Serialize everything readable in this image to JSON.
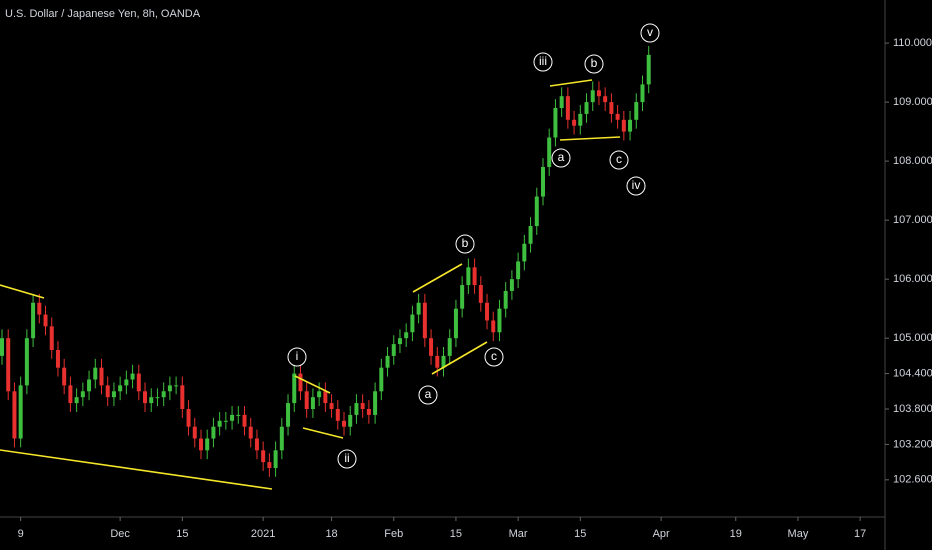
{
  "chart_data": {
    "type": "candlestick",
    "title": "U.S. Dollar / Japanese Yen, 8h, OANDA",
    "up_color": "#3fbf3f",
    "down_color": "#e8312f",
    "x": [
      "2020-11-04",
      "2020-11-05",
      "2020-11-06",
      "2020-11-09",
      "2020-11-10",
      "2020-11-11",
      "2020-11-12",
      "2020-11-13",
      "2020-11-16",
      "2020-11-17",
      "2020-11-18",
      "2020-11-19",
      "2020-11-20",
      "2020-11-23",
      "2020-11-24",
      "2020-11-25",
      "2020-11-26",
      "2020-11-27",
      "2020-11-30",
      "2020-12-01",
      "2020-12-02",
      "2020-12-03",
      "2020-12-04",
      "2020-12-07",
      "2020-12-08",
      "2020-12-09",
      "2020-12-10",
      "2020-12-11",
      "2020-12-14",
      "2020-12-15",
      "2020-12-16",
      "2020-12-17",
      "2020-12-18",
      "2020-12-21",
      "2020-12-22",
      "2020-12-23",
      "2020-12-24",
      "2020-12-25",
      "2020-12-28",
      "2020-12-29",
      "2020-12-30",
      "2020-12-31",
      "2021-01-01",
      "2021-01-04",
      "2021-01-05",
      "2021-01-06",
      "2021-01-07",
      "2021-01-08",
      "2021-01-11",
      "2021-01-12",
      "2021-01-13",
      "2021-01-14",
      "2021-01-15",
      "2021-01-18",
      "2021-01-19",
      "2021-01-20",
      "2021-01-21",
      "2021-01-22",
      "2021-01-25",
      "2021-01-26",
      "2021-01-27",
      "2021-01-28",
      "2021-01-29",
      "2021-02-01",
      "2021-02-02",
      "2021-02-03",
      "2021-02-04",
      "2021-02-05",
      "2021-02-08",
      "2021-02-09",
      "2021-02-10",
      "2021-02-11",
      "2021-02-12",
      "2021-02-15",
      "2021-02-16",
      "2021-02-17",
      "2021-02-18",
      "2021-02-19",
      "2021-02-22",
      "2021-02-23",
      "2021-02-24",
      "2021-02-25",
      "2021-02-26",
      "2021-03-01",
      "2021-03-02",
      "2021-03-03",
      "2021-03-04",
      "2021-03-05",
      "2021-03-08",
      "2021-03-09",
      "2021-03-10",
      "2021-03-11",
      "2021-03-12",
      "2021-03-15",
      "2021-03-16",
      "2021-03-17",
      "2021-03-18",
      "2021-03-19",
      "2021-03-22",
      "2021-03-23",
      "2021-03-24",
      "2021-03-25",
      "2021-03-26",
      "2021-03-29",
      "2021-03-30"
    ],
    "open": [
      104.7,
      105.0,
      104.1,
      103.3,
      104.2,
      105.0,
      105.6,
      105.4,
      105.2,
      104.8,
      104.5,
      104.2,
      103.9,
      104.0,
      104.1,
      104.3,
      104.5,
      104.2,
      104.0,
      104.1,
      104.2,
      104.3,
      104.4,
      104.1,
      103.9,
      104.0,
      104.0,
      104.1,
      104.2,
      104.2,
      103.8,
      103.5,
      103.3,
      103.1,
      103.3,
      103.5,
      103.6,
      103.6,
      103.7,
      103.7,
      103.5,
      103.3,
      103.1,
      102.9,
      102.8,
      103.1,
      103.5,
      103.9,
      104.4,
      104.1,
      103.8,
      104.0,
      104.1,
      103.9,
      103.8,
      103.6,
      103.5,
      103.7,
      103.9,
      103.8,
      103.7,
      104.1,
      104.5,
      104.7,
      104.9,
      105.0,
      105.1,
      105.4,
      105.6,
      105.0,
      104.7,
      104.5,
      104.7,
      105.0,
      105.5,
      105.9,
      106.2,
      105.9,
      105.6,
      105.3,
      105.1,
      105.5,
      105.8,
      106.0,
      106.3,
      106.6,
      106.9,
      107.4,
      107.9,
      108.4,
      108.9,
      109.1,
      108.7,
      108.6,
      108.8,
      109.0,
      109.2,
      109.1,
      109.0,
      108.8,
      108.7,
      108.5,
      108.7,
      109.0,
      109.3
    ],
    "high": [
      105.15,
      105.15,
      104.25,
      104.35,
      105.15,
      105.75,
      105.75,
      105.55,
      105.35,
      104.95,
      104.65,
      104.35,
      104.15,
      104.25,
      104.45,
      104.65,
      104.65,
      104.35,
      104.25,
      104.35,
      104.45,
      104.55,
      104.55,
      104.25,
      104.15,
      104.15,
      104.25,
      104.35,
      104.35,
      104.35,
      103.95,
      103.65,
      103.45,
      103.45,
      103.65,
      103.75,
      103.75,
      103.85,
      103.85,
      103.85,
      103.65,
      103.45,
      103.25,
      103.05,
      103.25,
      103.65,
      104.05,
      104.55,
      104.55,
      104.25,
      104.15,
      104.25,
      104.25,
      104.05,
      103.95,
      103.75,
      103.85,
      104.05,
      104.05,
      103.95,
      104.25,
      104.65,
      104.85,
      105.05,
      105.15,
      105.25,
      105.55,
      105.75,
      105.75,
      105.15,
      104.85,
      104.85,
      105.15,
      105.65,
      106.05,
      106.35,
      106.35,
      106.05,
      105.75,
      105.45,
      105.65,
      105.95,
      106.15,
      106.45,
      106.75,
      107.05,
      107.55,
      108.05,
      108.55,
      109.05,
      109.25,
      109.25,
      108.85,
      108.95,
      109.15,
      109.35,
      109.35,
      109.25,
      109.15,
      108.95,
      108.85,
      108.85,
      109.15,
      109.45,
      109.95
    ],
    "low": [
      104.55,
      103.95,
      103.15,
      103.15,
      104.05,
      104.85,
      105.25,
      105.05,
      104.65,
      104.35,
      104.05,
      103.75,
      103.75,
      103.85,
      103.95,
      104.15,
      104.05,
      103.85,
      103.85,
      103.95,
      104.05,
      104.15,
      103.95,
      103.75,
      103.75,
      103.85,
      103.85,
      103.95,
      104.05,
      103.65,
      103.35,
      103.15,
      102.95,
      102.95,
      103.15,
      103.35,
      103.45,
      103.45,
      103.55,
      103.35,
      103.15,
      102.95,
      102.75,
      102.65,
      102.65,
      102.95,
      103.35,
      103.75,
      103.95,
      103.65,
      103.65,
      103.85,
      103.75,
      103.65,
      103.45,
      103.35,
      103.35,
      103.55,
      103.65,
      103.55,
      103.55,
      103.95,
      104.35,
      104.55,
      104.75,
      104.85,
      104.95,
      105.25,
      104.85,
      104.55,
      104.35,
      104.35,
      104.55,
      104.85,
      105.35,
      105.75,
      105.75,
      105.45,
      105.15,
      104.95,
      104.95,
      105.35,
      105.65,
      105.85,
      106.15,
      106.45,
      106.75,
      107.25,
      107.75,
      108.25,
      108.75,
      108.55,
      108.45,
      108.45,
      108.65,
      108.85,
      108.95,
      108.85,
      108.65,
      108.55,
      108.35,
      108.35,
      108.55,
      108.85,
      109.15
    ],
    "close": [
      105.0,
      104.1,
      103.3,
      104.2,
      105.0,
      105.6,
      105.4,
      105.2,
      104.8,
      104.5,
      104.2,
      103.9,
      104.0,
      104.1,
      104.3,
      104.5,
      104.2,
      104.0,
      104.1,
      104.2,
      104.3,
      104.4,
      104.1,
      103.9,
      104.0,
      104.0,
      104.1,
      104.2,
      104.2,
      103.8,
      103.5,
      103.3,
      103.1,
      103.3,
      103.5,
      103.6,
      103.6,
      103.7,
      103.7,
      103.5,
      103.3,
      103.1,
      102.9,
      102.8,
      103.1,
      103.5,
      103.9,
      104.4,
      104.1,
      103.8,
      104.0,
      104.1,
      103.9,
      103.8,
      103.6,
      103.5,
      103.7,
      103.9,
      103.8,
      103.7,
      104.1,
      104.5,
      104.7,
      104.9,
      105.0,
      105.1,
      105.4,
      105.6,
      105.0,
      104.7,
      104.5,
      104.7,
      105.0,
      105.5,
      105.9,
      106.2,
      105.9,
      105.6,
      105.3,
      105.1,
      105.5,
      105.8,
      106.0,
      106.3,
      106.6,
      106.9,
      107.4,
      107.9,
      108.4,
      108.9,
      109.1,
      108.7,
      108.6,
      108.8,
      109.0,
      109.2,
      109.1,
      109.0,
      108.8,
      108.7,
      108.5,
      108.7,
      109.0,
      109.3,
      109.8
    ],
    "xlim": [
      "2020-11-04",
      "2021-05-21"
    ],
    "xticks": [
      {
        "value": "2020-11-09",
        "label": "9"
      },
      {
        "value": "2020-12-01",
        "label": "Dec"
      },
      {
        "value": "2020-12-15",
        "label": "15"
      },
      {
        "value": "2021-01-01",
        "label": "2021"
      },
      {
        "value": "2021-01-18",
        "label": "18"
      },
      {
        "value": "2021-02-01",
        "label": "Feb"
      },
      {
        "value": "2021-02-15",
        "label": "15"
      },
      {
        "value": "2021-03-01",
        "label": "Mar"
      },
      {
        "value": "2021-03-15",
        "label": "15"
      },
      {
        "value": "2021-04-01",
        "label": "Apr"
      },
      {
        "value": "2021-04-19",
        "label": "19"
      },
      {
        "value": "2021-05-01",
        "label": "May"
      },
      {
        "value": "2021-05-17",
        "label": "17"
      }
    ],
    "ylim": [
      101.97,
      110.73
    ],
    "yticks": [
      {
        "value": 110,
        "label": "110.000"
      },
      {
        "value": 109,
        "label": "109.000"
      },
      {
        "value": 108,
        "label": "108.000"
      },
      {
        "value": 107,
        "label": "107.000"
      },
      {
        "value": 106,
        "label": "106.000"
      },
      {
        "value": 105,
        "label": "105.000"
      },
      {
        "value": 104.4,
        "label": "104.400"
      },
      {
        "value": 103.8,
        "label": "103.800"
      },
      {
        "value": 103.2,
        "label": "103.200"
      },
      {
        "value": 102.6,
        "label": "102.600"
      }
    ],
    "annotations": [
      "i",
      "ii",
      "iii",
      "iv",
      "v",
      "a",
      "b",
      "c",
      "a",
      "b",
      "c"
    ]
  }
}
